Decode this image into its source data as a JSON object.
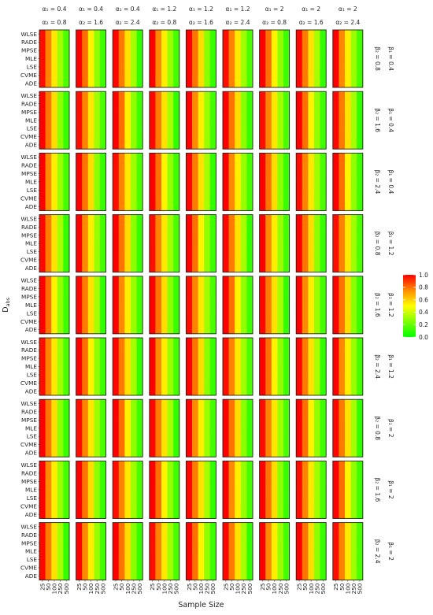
{
  "chart_data": {
    "type": "heatmap",
    "xlabel": "Sample Size",
    "ylabel": "D_abs",
    "x_categories": [
      "25",
      "50",
      "100",
      "250",
      "500"
    ],
    "y_categories": [
      "WLSE",
      "RADE",
      "MPSE",
      "MLE",
      "LSE",
      "CVME",
      "ADE"
    ],
    "column_facets": [
      {
        "line1": "α₁ = 0.4",
        "line2": "α₂ = 0.8"
      },
      {
        "line1": "α₁ = 0.4",
        "line2": "α₂ = 1.6"
      },
      {
        "line1": "α₁ = 0.4",
        "line2": "α₂ = 2.4"
      },
      {
        "line1": "α₁ = 1.2",
        "line2": "α₂ = 0.8"
      },
      {
        "line1": "α₁ = 1.2",
        "line2": "α₂ = 1.6"
      },
      {
        "line1": "α₁ = 1.2",
        "line2": "α₂ = 2.4"
      },
      {
        "line1": "α₁ = 2",
        "line2": "α₂ = 0.8"
      },
      {
        "line1": "α₁ = 2",
        "line2": "α₂ = 1.6"
      },
      {
        "line1": "α₁ = 2",
        "line2": "α₂ = 2.4"
      }
    ],
    "row_facets": [
      {
        "line1": "β₂ = 0.8",
        "line2": "β₁ = 0.4"
      },
      {
        "line1": "β₂ = 1.6",
        "line2": "β₁ = 0.4"
      },
      {
        "line1": "β₂ = 2.4",
        "line2": "β₁ = 0.4"
      },
      {
        "line1": "β₂ = 0.8",
        "line2": "β₁ = 1.2"
      },
      {
        "line1": "β₂ = 1.6",
        "line2": "β₁ = 1.2"
      },
      {
        "line1": "β₂ = 2.4",
        "line2": "β₁ = 1.2"
      },
      {
        "line1": "β₂ = 0.8",
        "line2": "β₁ = 2"
      },
      {
        "line1": "β₂ = 1.6",
        "line2": "β₁ = 2"
      },
      {
        "line1": "β₂ = 2.4",
        "line2": "β₁ = 2"
      }
    ],
    "approx_values_by_sample_size": [
      1.0,
      0.78,
      0.55,
      0.3,
      0.12
    ],
    "legend": {
      "ticks": [
        "1.0",
        "0.8",
        "0.6",
        "0.4",
        "0.2",
        "0.0"
      ],
      "range": [
        0,
        1
      ],
      "colors": [
        "#ff0000",
        "#ff8c00",
        "#ffff00",
        "#7fff00",
        "#00ff00"
      ],
      "placement": "right"
    }
  }
}
